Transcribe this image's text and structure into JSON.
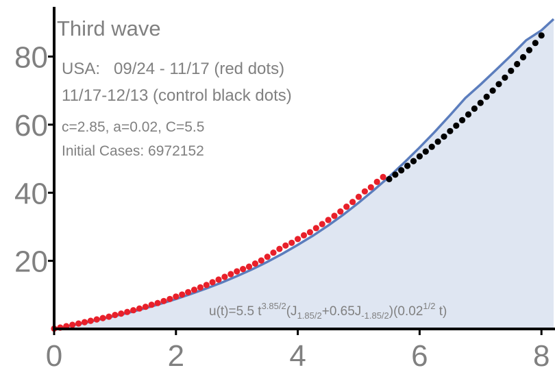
{
  "chart_data": {
    "type": "scatter",
    "xlim": [
      0,
      8.2
    ],
    "ylim": [
      0,
      95
    ],
    "x_ticks": [
      "0",
      "2",
      "4",
      "6",
      "8"
    ],
    "y_ticks": [
      "20",
      "40",
      "60",
      "80"
    ],
    "grid": false,
    "annotations": {
      "title": "Third wave",
      "line1": "USA:   09/24 - 11/17 (red dots)",
      "line2": "11/17-12/13 (control black dots)",
      "params": "c=2.85, a=0.02, C=5.5",
      "initial": "Initial Cases: 6972152"
    },
    "formula": {
      "prefix": "u(t)=5.5 t",
      "exp1": "3.85/2",
      "part2": "(J",
      "sub1": "1.85/2",
      "part3": "+0.65J",
      "sub2": "-1.85/2",
      "part4": ")(0.02",
      "exp2": "1/2",
      "part5": " t)"
    },
    "series": [
      {
        "color": "#e8202a",
        "style": "dots",
        "x": [
          0.0,
          0.1,
          0.2,
          0.3,
          0.4,
          0.5,
          0.6,
          0.7,
          0.8,
          0.9,
          1.0,
          1.1,
          1.2,
          1.3,
          1.4,
          1.5,
          1.6,
          1.7,
          1.8,
          1.9,
          2.0,
          2.1,
          2.2,
          2.3,
          2.4,
          2.5,
          2.6,
          2.7,
          2.8,
          2.9,
          3.0,
          3.1,
          3.2,
          3.3,
          3.4,
          3.5,
          3.6,
          3.7,
          3.8,
          3.9,
          4.0,
          4.1,
          4.2,
          4.3,
          4.4,
          4.5,
          4.6,
          4.7,
          4.8,
          4.9,
          5.0,
          5.1,
          5.2,
          5.3,
          5.4
        ],
        "y": [
          0.1,
          0.4,
          0.8,
          1.2,
          1.6,
          2.0,
          2.4,
          2.8,
          3.2,
          3.6,
          4.1,
          4.5,
          5.0,
          5.5,
          6.0,
          6.5,
          7.1,
          7.6,
          8.2,
          8.8,
          9.5,
          10.1,
          10.8,
          11.5,
          12.2,
          12.9,
          13.7,
          14.5,
          15.3,
          16.1,
          16.9,
          17.6,
          18.3,
          19.2,
          20.1,
          21.2,
          22.4,
          23.5,
          24.5,
          25.3,
          26.4,
          27.5,
          28.4,
          29.6,
          30.8,
          32.0,
          33.2,
          34.5,
          35.9,
          37.3,
          38.8,
          40.4,
          41.6,
          43.2,
          44.6
        ]
      },
      {
        "color": "#000000",
        "style": "dots",
        "x": [
          5.5,
          5.6,
          5.7,
          5.8,
          5.9,
          6.0,
          6.1,
          6.2,
          6.3,
          6.4,
          6.5,
          6.6,
          6.7,
          6.8,
          6.9,
          7.0,
          7.1,
          7.2,
          7.3,
          7.4,
          7.5,
          7.6,
          7.7,
          7.8,
          7.9,
          8.0
        ],
        "y": [
          44.0,
          45.3,
          46.6,
          47.9,
          49.3,
          50.7,
          52.1,
          53.5,
          55.0,
          56.5,
          58.1,
          59.7,
          61.3,
          63.0,
          64.7,
          66.4,
          68.2,
          70.0,
          71.9,
          73.8,
          75.8,
          77.8,
          79.8,
          81.9,
          84.0,
          86.2
        ]
      },
      {
        "color": "#5b7dbd",
        "style": "curve-filled",
        "fill": "#dfe6f2",
        "x": [
          0,
          0.25,
          0.5,
          0.75,
          1.0,
          1.25,
          1.5,
          1.75,
          2.0,
          2.25,
          2.5,
          2.75,
          3.0,
          3.25,
          3.5,
          3.75,
          4.0,
          4.25,
          4.5,
          4.75,
          5.0,
          5.25,
          5.5,
          5.75,
          6.0,
          6.25,
          6.5,
          6.75,
          7.0,
          7.25,
          7.5,
          7.75,
          8.0,
          8.2
        ],
        "y": [
          0.0,
          0.9,
          1.8,
          2.8,
          3.8,
          4.9,
          6.1,
          7.4,
          8.8,
          10.3,
          11.9,
          13.6,
          15.5,
          17.5,
          19.7,
          22.1,
          24.7,
          27.4,
          30.4,
          33.6,
          37.1,
          40.8,
          44.7,
          48.9,
          53.3,
          57.9,
          62.8,
          67.8,
          71.8,
          76.0,
          80.3,
          84.8,
          87.7,
          91.0
        ]
      }
    ]
  }
}
